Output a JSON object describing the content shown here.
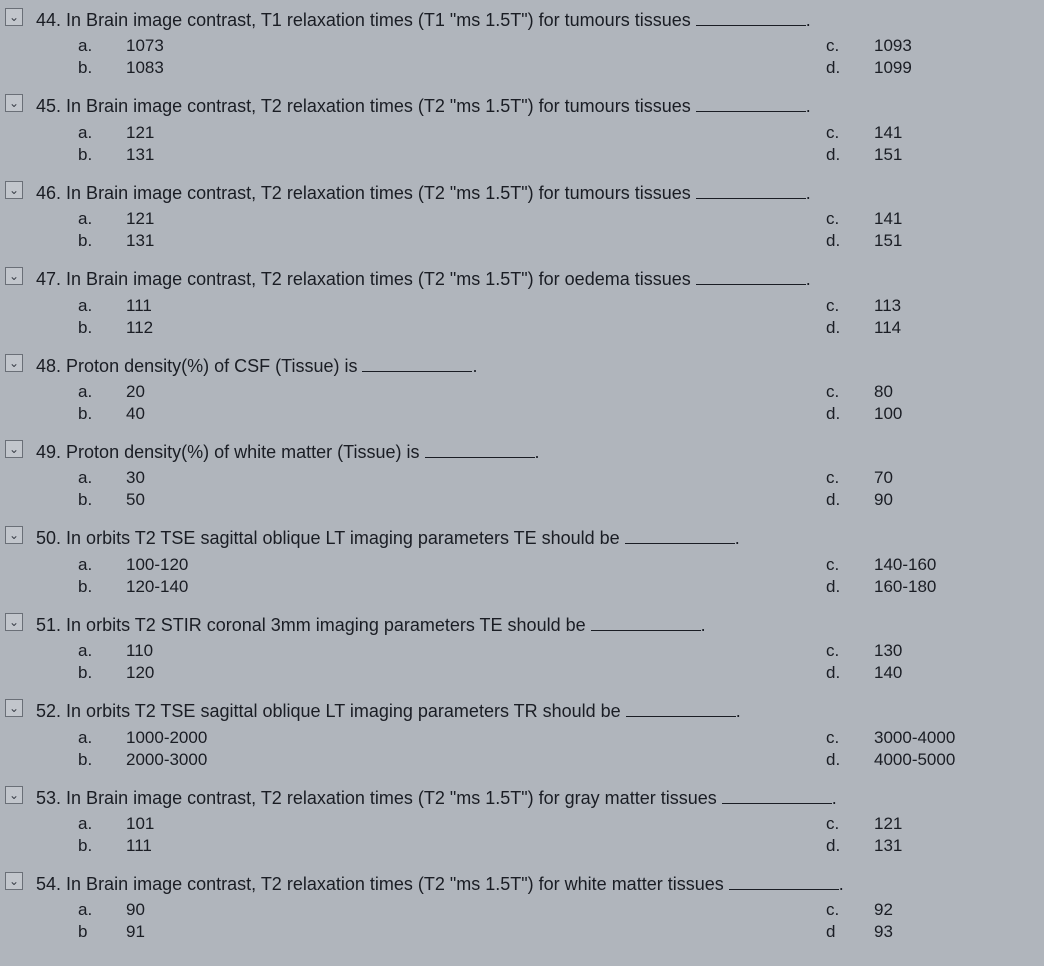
{
  "colors": {
    "background": "#b0b5bc",
    "text": "#1a1d24",
    "checkbox_border": "#6a6f77",
    "checkbox_bg": "#c2c6cc"
  },
  "typography": {
    "font_family": "Arial, sans-serif",
    "body_fontsize": 17,
    "question_fontsize": 18
  },
  "checkbox_glyph": "⌄",
  "questions": [
    {
      "number": "44.",
      "text": "In Brain image contrast, T1 relaxation times (T1 \"ms 1.5T\") for tumours tissues",
      "a": "1073",
      "b": "1083",
      "c": "1093",
      "d": "1099"
    },
    {
      "number": "45.",
      "text": "In Brain image contrast, T2 relaxation times (T2 \"ms 1.5T\") for tumours tissues",
      "a": "121",
      "b": "131",
      "c": "141",
      "d": "151"
    },
    {
      "number": "46.",
      "text": "In Brain image contrast, T2 relaxation times (T2 \"ms 1.5T\") for tumours tissues",
      "a": "121",
      "b": "131",
      "c": "141",
      "d": "151"
    },
    {
      "number": "47.",
      "text": "In Brain image contrast, T2 relaxation times (T2 \"ms 1.5T\") for oedema tissues",
      "a": "111",
      "b": "112",
      "c": "113",
      "d": "114"
    },
    {
      "number": "48.",
      "text": "Proton density(%) of CSF (Tissue) is",
      "a": "20",
      "b": "40",
      "c": "80",
      "d": "100"
    },
    {
      "number": "49.",
      "text": "Proton density(%) of white matter (Tissue) is",
      "a": "30",
      "b": "50",
      "c": "70",
      "d": "90"
    },
    {
      "number": "50.",
      "text": "In orbits T2 TSE sagittal oblique LT imaging parameters TE should be",
      "a": "100-120",
      "b": "120-140",
      "c": "140-160",
      "d": "160-180"
    },
    {
      "number": "51.",
      "text": "In orbits T2 STIR coronal 3mm imaging parameters TE should be",
      "a": "110",
      "b": "120",
      "c": "130",
      "d": "140"
    },
    {
      "number": "52.",
      "text": "In orbits T2 TSE sagittal oblique LT imaging parameters TR should be",
      "a": "1000-2000",
      "b": "2000-3000",
      "c": "3000-4000",
      "d": "4000-5000"
    },
    {
      "number": "53.",
      "text": "In Brain image contrast, T2 relaxation times (T2 \"ms 1.5T\") for gray matter tissues",
      "a": "101",
      "b": "111",
      "c": "121",
      "d": "131"
    },
    {
      "number": "54.",
      "text": "In Brain image contrast, T2 relaxation times (T2 \"ms 1.5T\") for white matter tissues",
      "a": "90",
      "b": "91",
      "c": "92",
      "d": "93"
    }
  ],
  "option_labels": {
    "a": "a.",
    "b": "b.",
    "c": "c.",
    "d": "d."
  },
  "last_partial_d_label": "d"
}
